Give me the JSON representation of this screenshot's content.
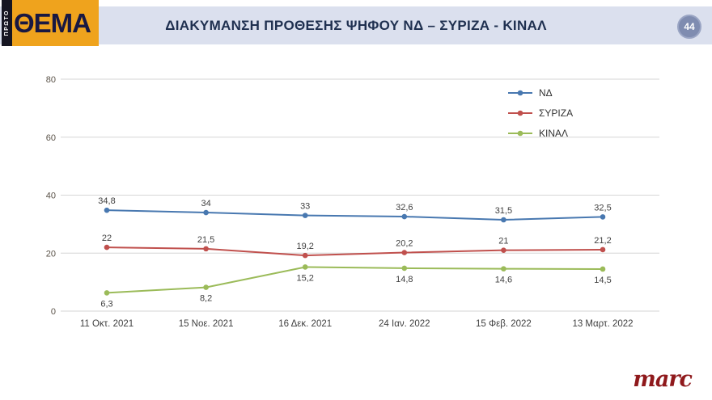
{
  "header": {
    "title": "ΔΙΑΚΥΜΑΝΣΗ ΠΡΟΘΕΣΗΣ ΨΗΦΟΥ ΝΔ – ΣΥΡΙΖΑ - ΚΙΝΑΛ",
    "page_badge": "44",
    "logo_text": "ΘΕΜΑ",
    "logo_small_text": "ΠΡΩΤΟ"
  },
  "footer": {
    "brand": "marc"
  },
  "chart_data": {
    "type": "line",
    "title": "ΔΙΑΚΥΜΑΝΣΗ ΠΡΟΘΕΣΗΣ ΨΗΦΟΥ ΝΔ – ΣΥΡΙΖΑ - ΚΙΝΑΛ",
    "categories": [
      "11 Οκτ. 2021",
      "15 Νοε. 2021",
      "16 Δεκ. 2021",
      "24 Ιαν. 2022",
      "15 Φεβ. 2022",
      "13 Μαρτ. 2022"
    ],
    "series": [
      {
        "name": "ΝΔ",
        "color": "#4878b0",
        "values": [
          34.8,
          34,
          33,
          32.6,
          31.5,
          32.5
        ],
        "labels": [
          "34,8",
          "34",
          "33",
          "32,6",
          "31,5",
          "32,5"
        ],
        "label_position": "above"
      },
      {
        "name": "ΣΥΡΙΖΑ",
        "color": "#c0504d",
        "values": [
          22,
          21.5,
          19.2,
          20.2,
          21,
          21.2
        ],
        "labels": [
          "22",
          "21,5",
          "19,2",
          "20,2",
          "21",
          "21,2"
        ],
        "label_position": "above"
      },
      {
        "name": "ΚΙΝΑΛ",
        "color": "#9bbb59",
        "values": [
          6.3,
          8.2,
          15.2,
          14.8,
          14.6,
          14.5
        ],
        "labels": [
          "6,3",
          "8,2",
          "15,2",
          "14,8",
          "14,6",
          "14,5"
        ],
        "label_position": "below"
      }
    ],
    "xlabel": "",
    "ylabel": "",
    "ylim": [
      0,
      80
    ],
    "yticks": [
      0,
      20,
      40,
      60,
      80
    ],
    "grid": true,
    "legend_position": "top-right-inside"
  }
}
